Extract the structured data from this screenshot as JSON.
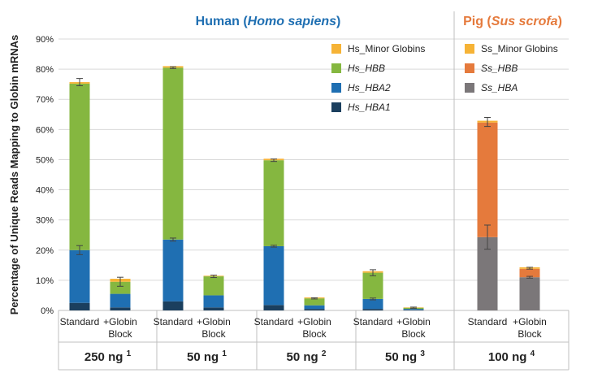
{
  "chart_data": {
    "type": "bar",
    "stacked": true,
    "groups": [
      {
        "title": "Human (",
        "title_italic": "Homo sapiens",
        "title_end": ")",
        "title_color": "#1f6fb2"
      },
      {
        "title": "Pig (",
        "title_italic": "Sus scrofa",
        "title_end": ")",
        "title_color": "#e57a3c"
      }
    ],
    "ylabel": "Percentage of Unique Reads Mapping to Globin mRNAs",
    "ylim": [
      0,
      90
    ],
    "yticks": [
      "0%",
      "10%",
      "20%",
      "30%",
      "40%",
      "50%",
      "60%",
      "70%",
      "80%",
      "90%"
    ],
    "bar_labels": [
      "Standard",
      "+Globin Block",
      "Standard",
      "+Globin Block",
      "Standard",
      "+Globin Block",
      "Standard",
      "+Globin Block",
      "Standard",
      "+Globin Block"
    ],
    "input_labels": [
      {
        "amount": "250 ng",
        "sup": "1"
      },
      {
        "amount": "50 ng",
        "sup": "1"
      },
      {
        "amount": "50 ng",
        "sup": "2"
      },
      {
        "amount": "50 ng",
        "sup": "3"
      },
      {
        "amount": "100 ng",
        "sup": "4"
      }
    ],
    "series": [
      {
        "name": "Hs_HBA1",
        "color": "#1b3f5e",
        "values": [
          2.5,
          1.0,
          3.0,
          1.0,
          1.8,
          0.5,
          0.5,
          0.2,
          0,
          0
        ]
      },
      {
        "name": "Hs_HBA2",
        "color": "#1f6fb2",
        "values": [
          17.5,
          4.5,
          20.5,
          4.0,
          19.5,
          1.2,
          3.3,
          0.3,
          0,
          0
        ]
      },
      {
        "name": "Hs_HBB",
        "color": "#85b740",
        "values": [
          55.2,
          4.0,
          57.0,
          6.3,
          28.5,
          2.3,
          8.7,
          0.4,
          0,
          0
        ]
      },
      {
        "name": "Hs_Minor Globins",
        "color": "#f6b336",
        "values": [
          0.5,
          1.0,
          0.5,
          0.2,
          0.5,
          0.3,
          0.5,
          0.1,
          0,
          0
        ]
      },
      {
        "name": "Ss_HBA",
        "color": "#7b7779",
        "values": [
          0,
          0,
          0,
          0,
          0,
          0,
          0,
          0,
          24.3,
          11.0
        ]
      },
      {
        "name": "Ss_HBB",
        "color": "#e57a3c",
        "values": [
          0,
          0,
          0,
          0,
          0,
          0,
          0,
          0,
          38.0,
          2.8
        ]
      },
      {
        "name": "Ss_Minor Globins",
        "color": "#f6b336",
        "values": [
          0,
          0,
          0,
          0,
          0,
          0,
          0,
          0,
          0.6,
          0.5
        ]
      }
    ],
    "error_bars": [
      {
        "bar": 0,
        "at": 20.0,
        "err": 1.5
      },
      {
        "bar": 0,
        "at": 75.7,
        "err": 1.2
      },
      {
        "bar": 1,
        "at": 9.5,
        "err": 1.5
      },
      {
        "bar": 2,
        "at": 23.5,
        "err": 0.5
      },
      {
        "bar": 2,
        "at": 80.5,
        "err": 0.3
      },
      {
        "bar": 3,
        "at": 11.3,
        "err": 0.4
      },
      {
        "bar": 4,
        "at": 21.3,
        "err": 0.3
      },
      {
        "bar": 4,
        "at": 49.8,
        "err": 0.4
      },
      {
        "bar": 5,
        "at": 4.0,
        "err": 0.2
      },
      {
        "bar": 6,
        "at": 3.8,
        "err": 0.3
      },
      {
        "bar": 6,
        "at": 12.5,
        "err": 1.0
      },
      {
        "bar": 7,
        "at": 0.9,
        "err": 0.2
      },
      {
        "bar": 8,
        "at": 24.3,
        "err": 4.0
      },
      {
        "bar": 8,
        "at": 62.5,
        "err": 1.5
      },
      {
        "bar": 9,
        "at": 11.0,
        "err": 0.3
      },
      {
        "bar": 9,
        "at": 14.0,
        "err": 0.3
      }
    ],
    "legend_human": [
      {
        "label": "Hs_Minor Globins",
        "color": "#f6b336",
        "italic": false
      },
      {
        "label": "Hs_HBB",
        "color": "#85b740",
        "italic": true
      },
      {
        "label": "Hs_HBA2",
        "color": "#1f6fb2",
        "italic": true
      },
      {
        "label": "Hs_HBA1",
        "color": "#1b3f5e",
        "italic": true
      }
    ],
    "legend_pig": [
      {
        "label": "Ss_Minor Globins",
        "color": "#f6b336",
        "italic": false
      },
      {
        "label": "Ss_HBB",
        "color": "#e57a3c",
        "italic": true
      },
      {
        "label": "Ss_HBA",
        "color": "#7b7779",
        "italic": true
      }
    ],
    "grid": true,
    "legend_position": "top-right"
  }
}
